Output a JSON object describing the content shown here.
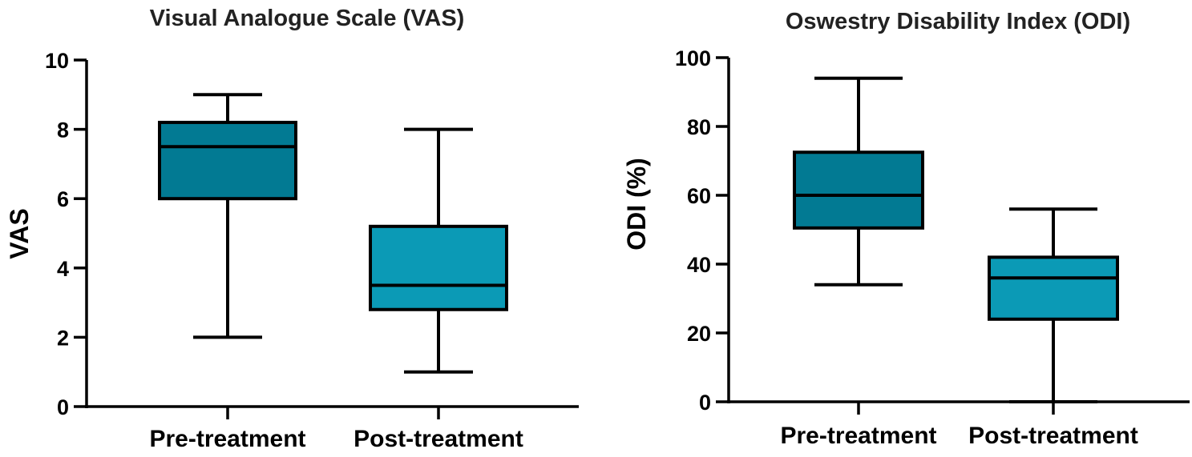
{
  "colors": {
    "pre": "#027A93",
    "post": "#0B9AB6",
    "stroke": "#000000"
  },
  "chart_data": [
    {
      "type": "box",
      "title": "Visual Analogue Scale (VAS)",
      "xlabel": "",
      "ylabel": "VAS",
      "ylim": [
        0,
        10
      ],
      "yticks": [
        0,
        2,
        4,
        6,
        8,
        10
      ],
      "categories": [
        "Pre-treatment",
        "Post-treatment"
      ],
      "boxes": [
        {
          "name": "Pre-treatment",
          "min": 2,
          "q1": 6,
          "median": 7.5,
          "q3": 8.2,
          "max": 9
        },
        {
          "name": "Post-treatment",
          "min": 1,
          "q1": 2.8,
          "median": 3.5,
          "q3": 5.2,
          "max": 8
        }
      ]
    },
    {
      "type": "box",
      "title": "Oswestry Disability Index (ODI)",
      "xlabel": "",
      "ylabel": "ODI (%)",
      "ylim": [
        0,
        100
      ],
      "yticks": [
        0,
        20,
        40,
        60,
        80,
        100
      ],
      "categories": [
        "Pre-treatment",
        "Post-treatment"
      ],
      "boxes": [
        {
          "name": "Pre-treatment",
          "min": 34,
          "q1": 50.5,
          "median": 60,
          "q3": 72.5,
          "max": 94
        },
        {
          "name": "Post-treatment",
          "min": 0,
          "q1": 24,
          "median": 36,
          "q3": 42,
          "max": 56
        }
      ]
    }
  ]
}
